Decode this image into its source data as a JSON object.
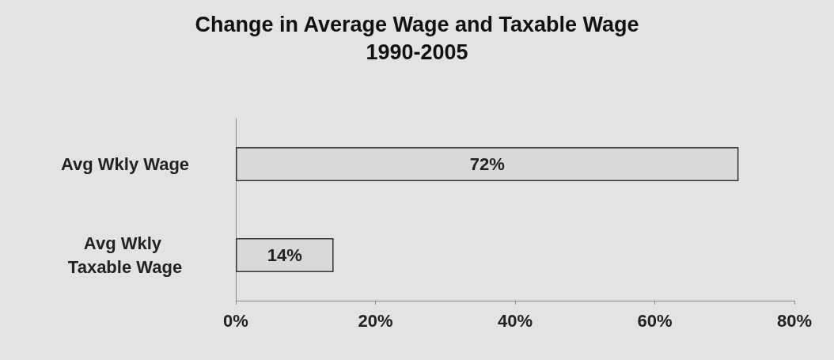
{
  "chart_data": {
    "type": "bar",
    "orientation": "horizontal",
    "title": "Change in Average Wage and Taxable Wage",
    "subtitle": "1990-2005",
    "categories": [
      "Avg Wkly Wage",
      "Avg Wkly Taxable Wage"
    ],
    "values": [
      72,
      14
    ],
    "color": "#d9d9d9",
    "value_labels": [
      "72%",
      "14%"
    ],
    "xlim": [
      0,
      80
    ],
    "xticks": [
      {
        "value": 0,
        "label": "0%"
      },
      {
        "value": 20,
        "label": "20%"
      },
      {
        "value": 40,
        "label": "40%"
      },
      {
        "value": 60,
        "label": "60%"
      },
      {
        "value": 80,
        "label": "80%"
      }
    ],
    "grid": false
  }
}
